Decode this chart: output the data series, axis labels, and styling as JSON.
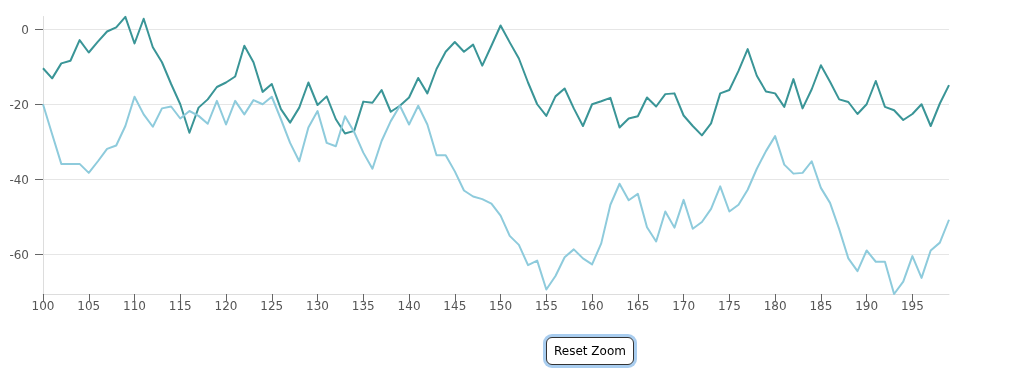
{
  "chart_data": {
    "type": "line",
    "x": [
      100,
      101,
      102,
      103,
      104,
      105,
      106,
      107,
      108,
      109,
      110,
      111,
      112,
      113,
      114,
      115,
      116,
      117,
      118,
      119,
      120,
      121,
      122,
      123,
      124,
      125,
      126,
      127,
      128,
      129,
      130,
      131,
      132,
      133,
      134,
      135,
      136,
      137,
      138,
      139,
      140,
      141,
      142,
      143,
      144,
      145,
      146,
      147,
      148,
      149,
      150,
      151,
      152,
      153,
      154,
      155,
      156,
      157,
      158,
      159,
      160,
      161,
      162,
      163,
      164,
      165,
      166,
      167,
      168,
      169,
      170,
      171,
      172,
      173,
      174,
      175,
      176,
      177,
      178,
      179,
      180,
      181,
      182,
      183,
      184,
      185,
      186,
      187,
      188,
      189,
      190,
      191,
      192,
      193,
      194,
      195,
      196,
      197,
      198,
      199
    ],
    "series": [
      {
        "color": "#3a9597",
        "values": [
          -10.3,
          -13,
          -9,
          -8.3,
          -2.8,
          -6.1,
          -3.2,
          -0.5,
          0.6,
          3.4,
          -3.7,
          2.9,
          -4.7,
          -8.7,
          -14.5,
          -19.9,
          -27.5,
          -20.8,
          -18.6,
          -15.3,
          -14.1,
          -12.5,
          -4.3,
          -8.7,
          -16.6,
          -14.5,
          -21.2,
          -24.8,
          -20.8,
          -14.1,
          -20.1,
          -17.8,
          -23.9,
          -27.7,
          -27,
          -19.2,
          -19.5,
          -16.1,
          -21.9,
          -20.3,
          -18.1,
          -12.9,
          -17,
          -10.5,
          -5.9,
          -3.3,
          -5.9,
          -4,
          -9.6,
          -4.3,
          1.1,
          -3.4,
          -7.7,
          -14.1,
          -19.9,
          -23,
          -17.8,
          -15.7,
          -21,
          -25.7,
          -19.9,
          -19.1,
          -18.2,
          -26.1,
          -23.7,
          -23.1,
          -18.1,
          -20.5,
          -17.2,
          -17,
          -22.9,
          -25.7,
          -28.2,
          -25,
          -17,
          -16.1,
          -11,
          -5.2,
          -12.3,
          -16.5,
          -17,
          -20.6,
          -13.2,
          -21,
          -15.9,
          -9.5,
          -13.9,
          -18.6,
          -19.3,
          -22.5,
          -19.9,
          -13.7,
          -20.6,
          -21.5,
          -24.1,
          -22.5,
          -19.9,
          -25.7,
          -19.7,
          -14.8
        ]
      },
      {
        "color": "#8ecbdc",
        "values": [
          -19.9,
          -27.9,
          -35.8,
          -35.8,
          -35.8,
          -38.2,
          -35.1,
          -31.8,
          -30.9,
          -25.7,
          -17.9,
          -22.6,
          -25.9,
          -21,
          -20.5,
          -23.7,
          -21.7,
          -23,
          -25.1,
          -19,
          -25.3,
          -19,
          -22.6,
          -18.8,
          -19.9,
          -17.9,
          -23.9,
          -30.2,
          -35.1,
          -26.1,
          -21.7,
          -30.2,
          -31.1,
          -23.1,
          -27.3,
          -32.8,
          -37.1,
          -29.7,
          -24.4,
          -20.3,
          -25.3,
          -20.3,
          -25.3,
          -33.5,
          -33.5,
          -37.8,
          -42.9,
          -44.5,
          -45.2,
          -46.4,
          -49.6,
          -55,
          -57.4,
          -62.8,
          -61.6,
          -69.3,
          -65.7,
          -60.7,
          -58.6,
          -61,
          -62.6,
          -57,
          -46.7,
          -41.1,
          -45.5,
          -43.8,
          -52.7,
          -56.5,
          -48.5,
          -52.8,
          -45.4,
          -53.1,
          -51.3,
          -47.8,
          -41.8,
          -48.5,
          -46.7,
          -42.7,
          -37.1,
          -32.4,
          -28.4,
          -36,
          -38.4,
          -38.2,
          -35.1,
          -42.2,
          -46.2,
          -53.2,
          -61,
          -64.4,
          -58.9,
          -61.9,
          -61.9,
          -70.5,
          -67.2,
          -60.4,
          -66.2,
          -58.9,
          -56.8,
          -50.7
        ]
      }
    ],
    "xlim": [
      100,
      199
    ],
    "xticks": [
      100,
      105,
      110,
      115,
      120,
      125,
      130,
      135,
      140,
      145,
      150,
      155,
      160,
      165,
      170,
      175,
      180,
      185,
      190,
      195
    ],
    "ylim": [
      -70.5,
      3.5
    ],
    "yticks": [
      -60,
      -40,
      -20,
      0
    ],
    "grid": "y",
    "marker": "none",
    "line_style": "solid",
    "annotations": [
      "Reset Zoom"
    ]
  }
}
